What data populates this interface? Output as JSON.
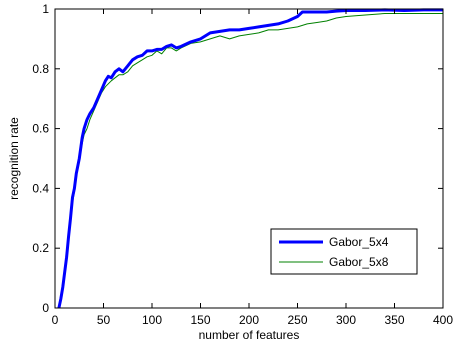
{
  "chart_data": {
    "type": "line",
    "title": "",
    "xlabel": "number of features",
    "ylabel": "recognition rate",
    "xlim": [
      0,
      400
    ],
    "ylim": [
      0,
      1
    ],
    "xticks": [
      "0",
      "50",
      "100",
      "150",
      "200",
      "250",
      "300",
      "350",
      "400"
    ],
    "yticks": [
      "0",
      "0.2",
      "0.4",
      "0.6",
      "0.8",
      "1"
    ],
    "grid": false,
    "legend_position": "bottom-right",
    "series": [
      {
        "name": "Gabor_5x4",
        "color": "#0000ff",
        "x": [
          4,
          6,
          8,
          10,
          12,
          14,
          16,
          18,
          20,
          22,
          25,
          28,
          30,
          33,
          36,
          40,
          44,
          48,
          52,
          55,
          58,
          62,
          66,
          70,
          75,
          80,
          85,
          90,
          95,
          100,
          105,
          110,
          115,
          120,
          125,
          130,
          140,
          150,
          160,
          170,
          180,
          190,
          200,
          210,
          220,
          230,
          240,
          250,
          255,
          260,
          270,
          280,
          290,
          300,
          320,
          340,
          360,
          380,
          400
        ],
        "y": [
          0.0,
          0.03,
          0.07,
          0.12,
          0.17,
          0.24,
          0.3,
          0.37,
          0.4,
          0.45,
          0.5,
          0.57,
          0.6,
          0.63,
          0.65,
          0.67,
          0.7,
          0.73,
          0.76,
          0.775,
          0.77,
          0.79,
          0.8,
          0.79,
          0.81,
          0.83,
          0.84,
          0.845,
          0.86,
          0.86,
          0.865,
          0.865,
          0.875,
          0.88,
          0.87,
          0.875,
          0.89,
          0.9,
          0.92,
          0.925,
          0.93,
          0.93,
          0.935,
          0.94,
          0.945,
          0.95,
          0.96,
          0.975,
          0.99,
          0.99,
          0.99,
          0.99,
          0.993,
          0.995,
          0.995,
          0.997,
          0.995,
          0.997,
          0.997
        ]
      },
      {
        "name": "Gabor_5x8",
        "color": "#008000",
        "x": [
          4,
          6,
          8,
          10,
          12,
          14,
          16,
          18,
          20,
          22,
          25,
          28,
          30,
          33,
          36,
          40,
          44,
          48,
          52,
          55,
          58,
          62,
          66,
          70,
          75,
          80,
          85,
          90,
          95,
          100,
          105,
          110,
          115,
          120,
          125,
          130,
          140,
          150,
          160,
          170,
          180,
          190,
          200,
          210,
          220,
          230,
          240,
          250,
          255,
          260,
          270,
          280,
          290,
          300,
          320,
          340,
          360,
          380,
          400
        ],
        "y": [
          0.0,
          0.02,
          0.06,
          0.11,
          0.16,
          0.22,
          0.29,
          0.35,
          0.39,
          0.44,
          0.49,
          0.55,
          0.58,
          0.6,
          0.63,
          0.66,
          0.69,
          0.72,
          0.74,
          0.75,
          0.76,
          0.77,
          0.78,
          0.78,
          0.79,
          0.81,
          0.82,
          0.83,
          0.84,
          0.845,
          0.86,
          0.85,
          0.87,
          0.87,
          0.86,
          0.87,
          0.885,
          0.89,
          0.9,
          0.91,
          0.9,
          0.91,
          0.915,
          0.92,
          0.93,
          0.93,
          0.935,
          0.94,
          0.945,
          0.95,
          0.955,
          0.96,
          0.97,
          0.975,
          0.98,
          0.985,
          0.985,
          0.985,
          0.985
        ]
      }
    ]
  }
}
